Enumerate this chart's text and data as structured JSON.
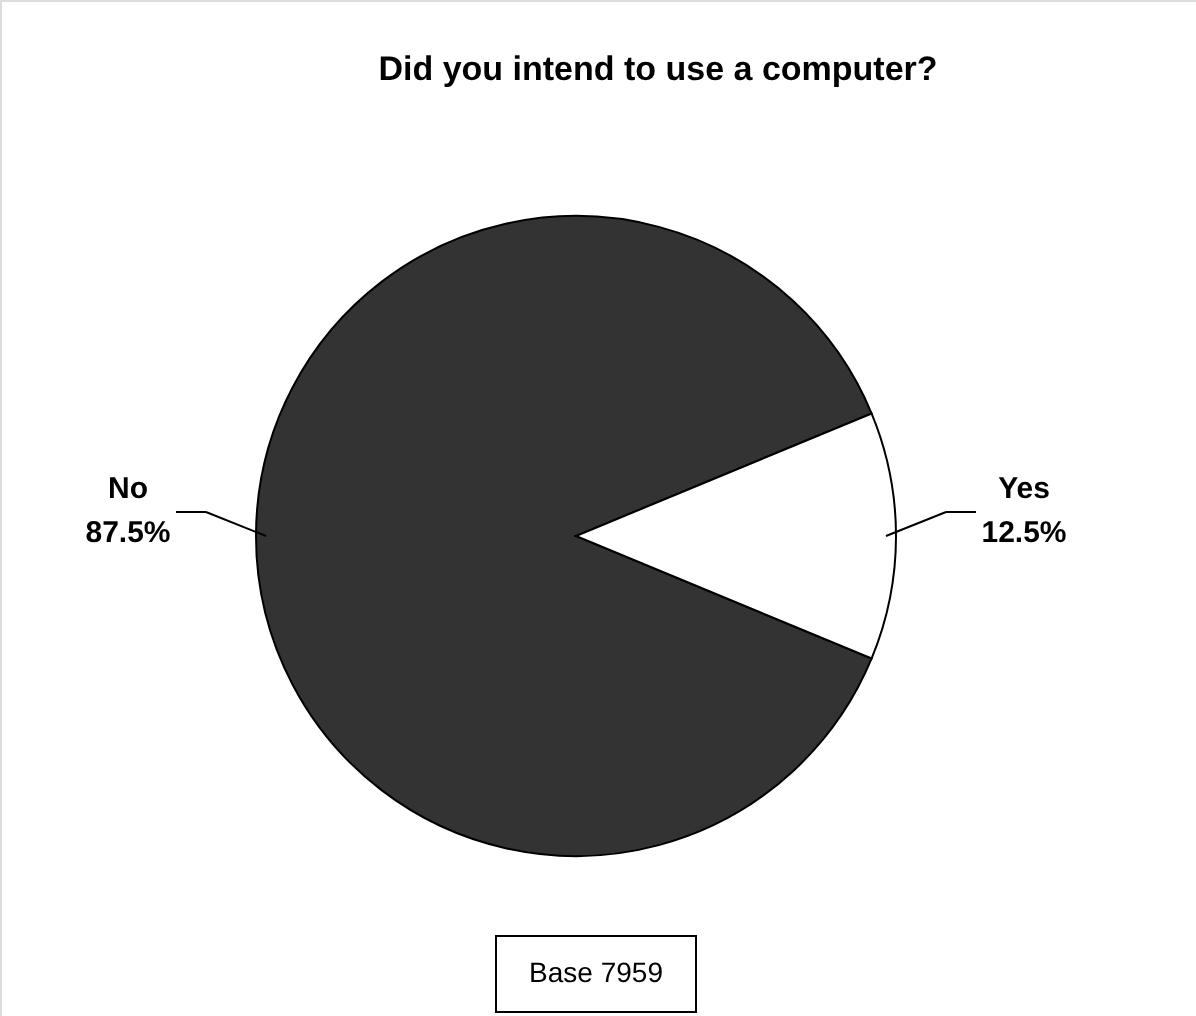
{
  "chart_data": {
    "type": "pie",
    "title": "Did you intend to use a computer?",
    "categories": [
      "No",
      "Yes"
    ],
    "values": [
      87.5,
      12.5
    ],
    "colors": [
      "#333333",
      "#ffffff"
    ],
    "value_labels": [
      "87.5%",
      "12.5%"
    ],
    "annotations": [
      "Base 7959"
    ]
  }
}
